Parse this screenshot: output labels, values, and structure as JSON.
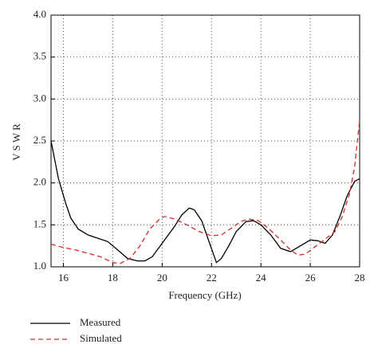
{
  "chart_data": {
    "type": "line",
    "x_label": "Frequency (GHz)",
    "y_label": "VSWR",
    "xlim": [
      15.5,
      28
    ],
    "xticks": [
      16,
      18,
      20,
      22,
      24,
      26,
      28
    ],
    "ylim": [
      1,
      4
    ],
    "yticks": [
      {
        "value": 1,
        "label": "1.0"
      },
      1.5,
      {
        "value": 2,
        "label": "2.0"
      },
      2.5,
      {
        "value": 3,
        "label": "3.0"
      },
      3.5,
      {
        "value": 4,
        "label": "4.0"
      }
    ],
    "grid": true,
    "legend": "bottom-left",
    "series": [
      {
        "name": "Measured",
        "color": "#000000",
        "line_style": "solid",
        "x": [
          15.5,
          15.8,
          16.1,
          16.3,
          16.6,
          17,
          17.5,
          17.8,
          18.2,
          18.6,
          19,
          19.3,
          19.6,
          20,
          20.5,
          20.8,
          21.1,
          21.3,
          21.6,
          21.9,
          22.2,
          22.4,
          22.7,
          23,
          23.4,
          23.7,
          24,
          24.4,
          24.8,
          25.2,
          25.6,
          26,
          26.3,
          26.6,
          26.9,
          27.2,
          27.5,
          27.8,
          28
        ],
        "values": [
          2.5,
          2.05,
          1.75,
          1.58,
          1.45,
          1.38,
          1.33,
          1.3,
          1.2,
          1.1,
          1.07,
          1.07,
          1.12,
          1.28,
          1.48,
          1.62,
          1.7,
          1.68,
          1.55,
          1.3,
          1.05,
          1.1,
          1.25,
          1.42,
          1.54,
          1.55,
          1.5,
          1.38,
          1.22,
          1.18,
          1.25,
          1.32,
          1.31,
          1.28,
          1.38,
          1.6,
          1.85,
          2.02,
          2.05
        ]
      },
      {
        "name": "Simulated",
        "color": "#d42a2a",
        "line_style": "dashed",
        "x": [
          15.5,
          16,
          16.5,
          17,
          17.5,
          18,
          18.3,
          18.7,
          19.1,
          19.5,
          19.9,
          20.1,
          20.5,
          21,
          21.5,
          22,
          22.4,
          22.8,
          23.2,
          23.5,
          23.9,
          24.3,
          24.8,
          25.2,
          25.5,
          25.8,
          26.2,
          26.6,
          27,
          27.3,
          27.6,
          27.8,
          28
        ],
        "values": [
          1.27,
          1.23,
          1.2,
          1.16,
          1.12,
          1.05,
          1.04,
          1.1,
          1.25,
          1.45,
          1.57,
          1.6,
          1.57,
          1.5,
          1.42,
          1.37,
          1.38,
          1.46,
          1.54,
          1.57,
          1.55,
          1.46,
          1.32,
          1.2,
          1.14,
          1.15,
          1.24,
          1.33,
          1.42,
          1.6,
          1.88,
          2.2,
          2.75
        ]
      }
    ]
  }
}
